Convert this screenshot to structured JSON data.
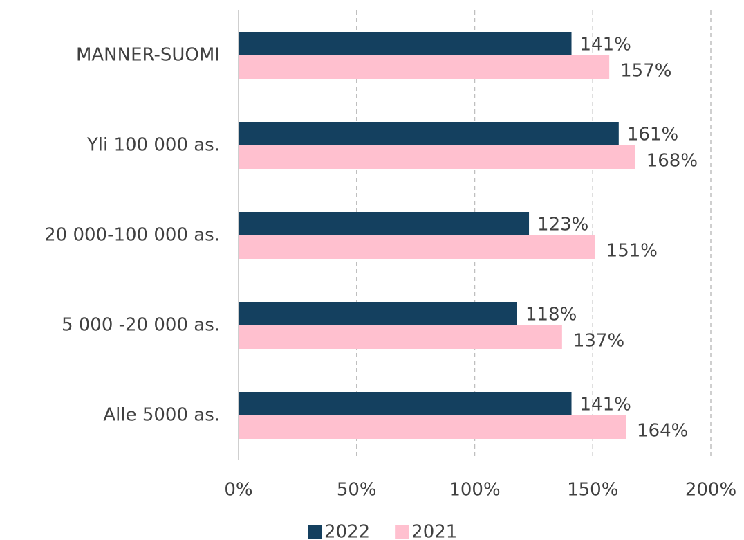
{
  "chart_data": {
    "type": "bar",
    "orientation": "horizontal",
    "categories": [
      "MANNER-SUOMI",
      "Yli 100 000 as.",
      "20 000-100 000 as.",
      "5 000 -20 000 as.",
      "Alle 5000 as."
    ],
    "series": [
      {
        "name": "2022",
        "color": "#14405f",
        "values": [
          141,
          161,
          123,
          118,
          141
        ],
        "value_labels": [
          "141%",
          "161%",
          "123%",
          "118%",
          "141%"
        ]
      },
      {
        "name": "2021",
        "color": "#ffc0cf",
        "values": [
          157,
          168,
          151,
          137,
          164
        ],
        "value_labels": [
          "157%",
          "168%",
          "151%",
          "137%",
          "164%"
        ]
      }
    ],
    "xlim": [
      0,
      200
    ],
    "xticks": [
      {
        "value": 0,
        "label": "0%"
      },
      {
        "value": 50,
        "label": "50%"
      },
      {
        "value": 100,
        "label": "100%"
      },
      {
        "value": 150,
        "label": "150%"
      },
      {
        "value": 200,
        "label": "200%"
      }
    ],
    "grid": true,
    "legend": "bottom"
  }
}
